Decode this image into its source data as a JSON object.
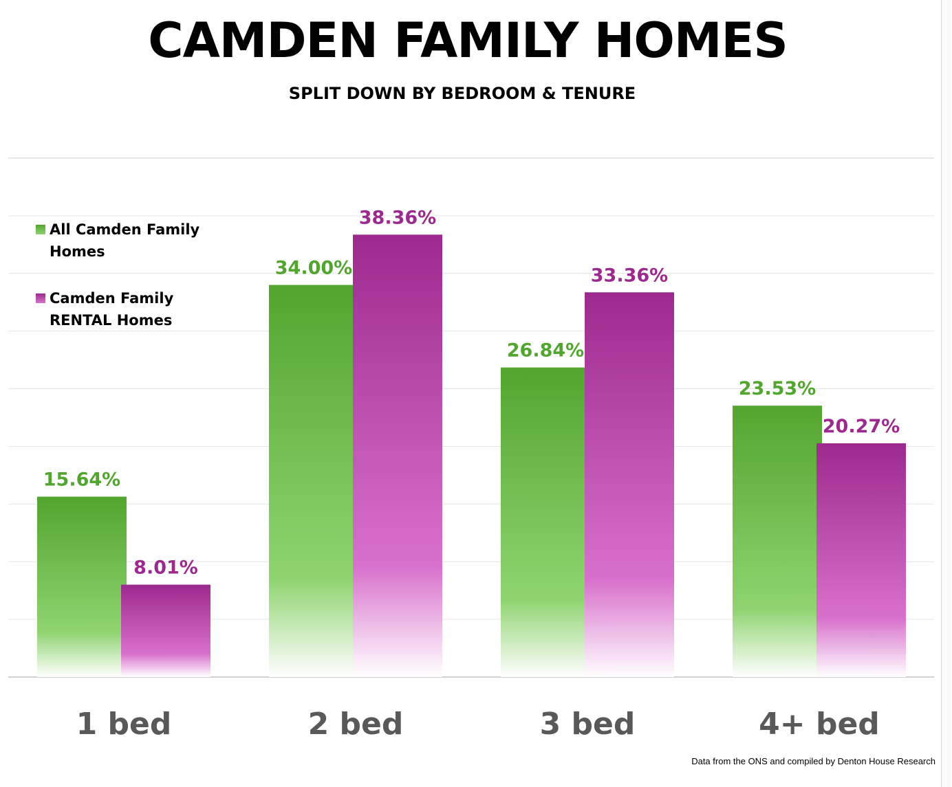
{
  "chart_data": {
    "type": "bar",
    "title": "CAMDEN FAMILY HOMES",
    "subtitle": "SPLIT DOWN BY BEDROOM & TENURE",
    "categories": [
      "1 bed",
      "2 bed",
      "3 bed",
      "4+ bed"
    ],
    "series": [
      {
        "name": "All Camden Family Homes",
        "values": [
          15.64,
          34.0,
          26.84,
          23.53
        ],
        "labels": [
          "15.64%",
          "34.00%",
          "26.84%",
          "23.53%"
        ],
        "color": "#52a52e",
        "color_light": "#8fd470"
      },
      {
        "name": "Camden Family RENTAL Homes",
        "values": [
          8.01,
          38.36,
          33.36,
          20.27
        ],
        "labels": [
          "8.01%",
          "38.36%",
          "33.36%",
          "20.27%"
        ],
        "color": "#9c2a8e",
        "color_light": "#d871cc"
      }
    ],
    "ylim": [
      0,
      45
    ],
    "grid": true,
    "y_axis_visible": false,
    "legend_position": "top-left",
    "source_note": "Data from the ONS and compiled by Denton House Research"
  }
}
